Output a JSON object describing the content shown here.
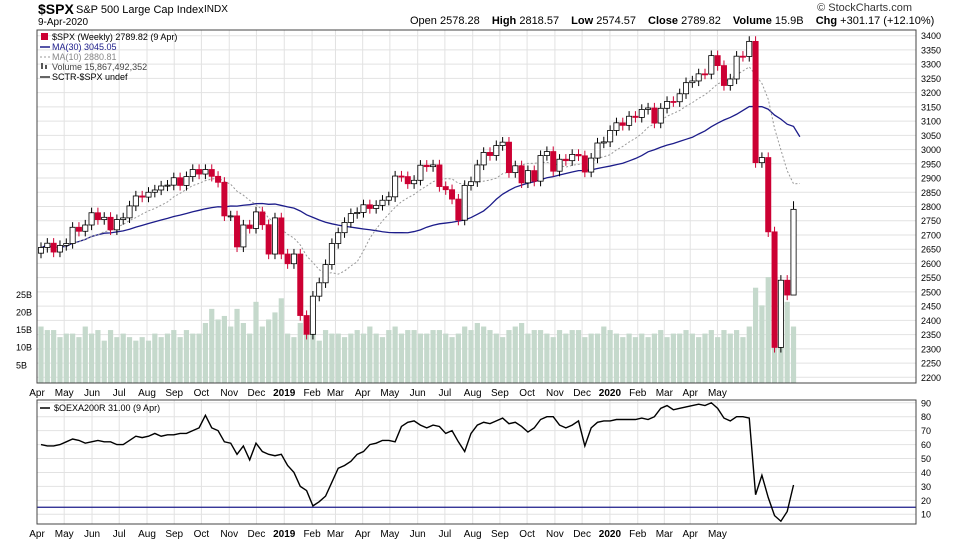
{
  "header": {
    "symbol": "$SPX",
    "name": "S&P 500 Large Cap Index",
    "exchange": "INDX",
    "date": "9-Apr-2020",
    "brand": "© StockCharts.com",
    "open_label": "Open",
    "open": "2578.28",
    "high_label": "High",
    "high": "2818.57",
    "low_label": "Low",
    "low": "2574.57",
    "close_label": "Close",
    "close": "2789.82",
    "volume_label": "Volume",
    "volume": "15.9B",
    "chg_label": "Chg",
    "chg": "+301.17 (+12.10%)"
  },
  "legend": {
    "price": "$SPX (Weekly) 2789.82 (9 Apr)",
    "ma30": "MA(30) 3045.05",
    "ma10": "MA(10) 2880.81",
    "volume": "Volume 15,867,492,352",
    "sctr": "SCTR-$SPX undef",
    "indicator": "$OEXA200R 31.00 (9 Apr)"
  },
  "colors": {
    "up": "#000000",
    "down": "#cc0033",
    "ma30": "#1c1c8a",
    "ma10": "#999999",
    "volume": "#c5d9cc",
    "grid": "#e2e2e2",
    "indicator": "#000000",
    "ref_line": "#1c1c8a"
  },
  "chart_data": [
    {
      "type": "candlestick",
      "title": "$SPX (Weekly)",
      "period": "weekly, Apr 2018 - Apr 2020",
      "ylim": [
        2180,
        3420
      ],
      "yticks": [
        2200,
        2250,
        2300,
        2350,
        2400,
        2450,
        2500,
        2550,
        2600,
        2650,
        2700,
        2750,
        2800,
        2850,
        2900,
        2950,
        3000,
        3050,
        3100,
        3150,
        3200,
        3250,
        3300,
        3350,
        3400
      ],
      "volume_ticks": [
        "5B",
        "10B",
        "15B",
        "20B",
        "25B"
      ],
      "volume_max_b": 34,
      "closes": [
        2656,
        2671,
        2640,
        2663,
        2670,
        2727,
        2713,
        2735,
        2778,
        2754,
        2762,
        2718,
        2754,
        2760,
        2802,
        2837,
        2833,
        2850,
        2858,
        2872,
        2875,
        2901,
        2874,
        2905,
        2930,
        2914,
        2930,
        2906,
        2885,
        2767,
        2767,
        2658,
        2735,
        2723,
        2781,
        2736,
        2633,
        2760,
        2633,
        2599,
        2633,
        2417,
        2351,
        2485,
        2532,
        2596,
        2670,
        2708,
        2744,
        2775,
        2779,
        2806,
        2793,
        2804,
        2822,
        2834,
        2907,
        2905,
        2880,
        2892,
        2945,
        2940,
        2946,
        2870,
        2859,
        2826,
        2752,
        2874,
        2887,
        2946,
        2990,
        2979,
        3014,
        3026,
        2919,
        2943,
        2883,
        2926,
        2889,
        2979,
        2993,
        2924,
        2966,
        2961,
        2983,
        2978,
        2921,
        2970,
        3023,
        3027,
        3067,
        3094,
        3085,
        3117,
        3113,
        3141,
        3146,
        3093,
        3145,
        3169,
        3168,
        3196,
        3235,
        3241,
        3266,
        3265,
        3330,
        3295,
        3225,
        3248,
        3328,
        3327,
        3380,
        2954,
        2972,
        2711,
        2305,
        2541,
        2489,
        2790
      ],
      "ma10_end": 2880.81,
      "ma30_end": 3045.05,
      "last_candle": {
        "open": 2578.28,
        "high": 2818.57,
        "low": 2574.57,
        "close": 2789.82,
        "volume": "15.9B"
      }
    },
    {
      "type": "line",
      "title": "$OEXA200R",
      "last_value": 31.0,
      "ylim": [
        3,
        92
      ],
      "yticks": [
        10,
        20,
        30,
        40,
        50,
        60,
        70,
        80,
        90
      ],
      "reference_line": 15,
      "values": [
        60,
        59,
        59,
        60,
        62,
        64,
        63,
        61,
        62,
        63,
        62,
        62,
        60,
        60,
        63,
        66,
        65,
        66,
        68,
        66,
        67,
        67,
        68,
        68,
        70,
        72,
        81,
        72,
        70,
        62,
        61,
        53,
        59,
        49,
        61,
        55,
        53,
        52,
        53,
        45,
        40,
        30,
        27,
        16,
        19,
        23,
        33,
        43,
        45,
        48,
        53,
        55,
        60,
        61,
        63,
        63,
        62,
        73,
        76,
        77,
        74,
        72,
        74,
        73,
        68,
        70,
        62,
        55,
        68,
        74,
        76,
        75,
        77,
        79,
        75,
        76,
        73,
        69,
        72,
        78,
        80,
        80,
        74,
        72,
        74,
        77,
        59,
        72,
        76,
        77,
        77,
        78,
        78,
        78,
        78,
        79,
        78,
        80,
        86,
        88,
        85,
        86,
        87,
        88,
        89,
        88,
        90,
        86,
        79,
        77,
        80,
        80,
        79,
        24,
        38,
        22,
        9,
        5,
        12,
        31
      ],
      "xticks": [
        "Apr",
        "May",
        "Jun",
        "Jul",
        "Aug",
        "Sep",
        "Oct",
        "Nov",
        "Dec",
        "2019",
        "Feb",
        "Mar",
        "Apr",
        "May",
        "Jun",
        "Jul",
        "Aug",
        "Sep",
        "Oct",
        "Nov",
        "Dec",
        "2020",
        "Feb",
        "Mar",
        "Apr",
        "May"
      ]
    }
  ]
}
